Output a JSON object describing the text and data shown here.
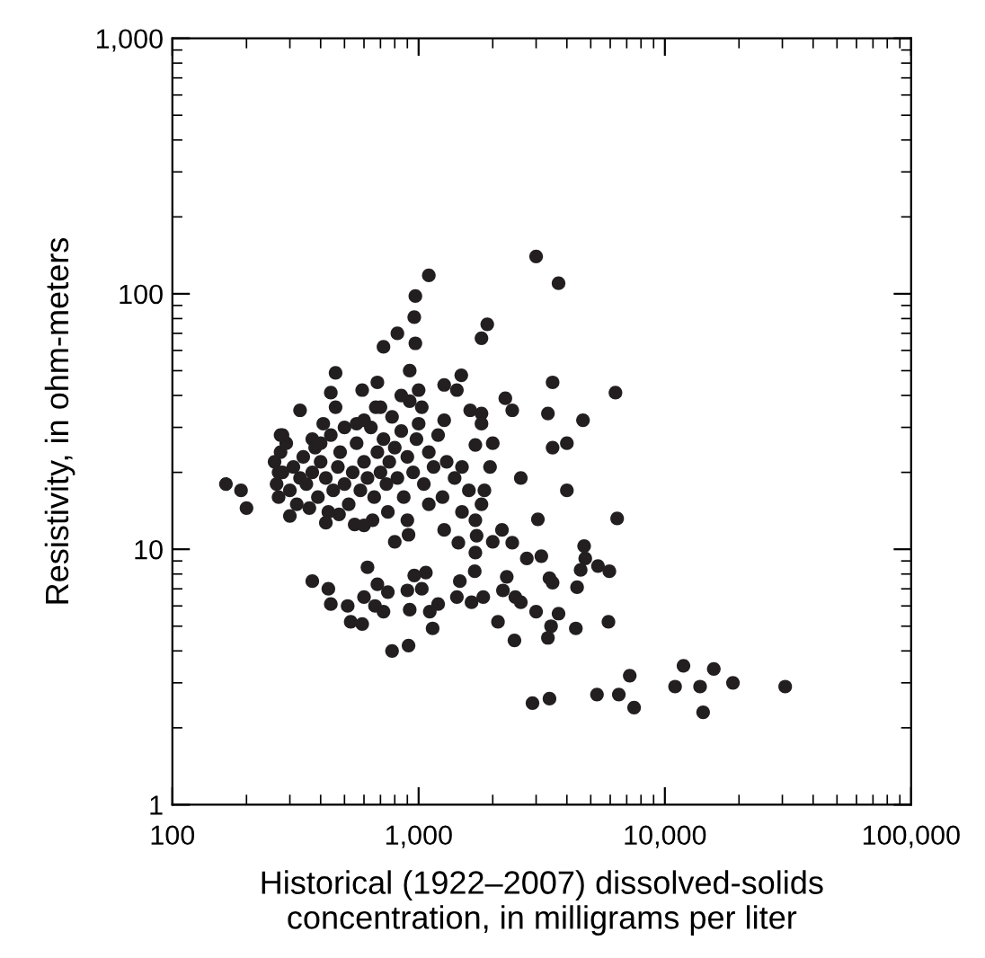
{
  "chart_data": {
    "type": "scatter",
    "xlabel": "Historical (1922–2007) dissolved-solids\nconcentration, in milligrams per liter",
    "ylabel": "Resistivity, in ohm-meters",
    "log": "xy",
    "grid": false,
    "marker": "circle",
    "xlim": [
      100,
      100000
    ],
    "ylim": [
      1,
      1000
    ],
    "xticks": [
      {
        "value": 100,
        "label": "100"
      },
      {
        "value": 1000,
        "label": "1,000"
      },
      {
        "value": 10000,
        "label": "10,000"
      },
      {
        "value": 100000,
        "label": "100,000"
      }
    ],
    "yticks": [
      {
        "value": 1,
        "label": "1"
      },
      {
        "value": 10,
        "label": "10"
      },
      {
        "value": 100,
        "label": "100"
      },
      {
        "value": 1000,
        "label": "1,000"
      }
    ],
    "series": [
      {
        "color": "#231f20",
        "x": [
          3000,
          3700,
          1100,
          970,
          960,
          820,
          720,
          970,
          1900,
          1800,
          3500,
          6300,
          3350,
          4650,
          4000,
          3500,
          4000,
          2600,
          2250,
          2400,
          460,
          440,
          330,
          275,
          590,
          680,
          920,
          1270,
          1490,
          1430,
          1620,
          1800,
          1800,
          2000,
          1700,
          370,
          410,
          560,
          460,
          670,
          1030,
          1270,
          1950,
          1500,
          1850,
          270,
          420,
          475,
          600,
          800,
          910,
          1270,
          1450,
          1720,
          2000,
          2180,
          2400,
          3050,
          6400,
          1700,
          2750,
          3150,
          4700,
          4750,
          5350,
          5950,
          620,
          370,
          430,
          440,
          515,
          600,
          680,
          665,
          750,
          720,
          530,
          590,
          960,
          1070,
          900,
          1030,
          920,
          1110,
          1200,
          1140,
          780,
          910,
          1430,
          1640,
          1470,
          1690,
          1830,
          2280,
          2200,
          2470,
          2600,
          2100,
          3000,
          3700,
          3450,
          3350,
          2450,
          4350,
          5900,
          4400,
          4550,
          3400,
          3500,
          7200,
          5300,
          6500,
          7500,
          2900,
          3400,
          11900,
          15800,
          18900,
          11000,
          13900,
          14300,
          30800,
          165,
          190,
          200,
          260,
          265,
          270,
          275,
          280,
          290,
          300,
          310,
          320,
          330,
          340,
          350,
          360,
          370,
          380,
          390,
          400,
          420,
          430,
          440,
          450,
          470,
          480,
          500,
          520,
          540,
          560,
          580,
          600,
          620,
          640,
          660,
          680,
          700,
          720,
          740,
          760,
          780,
          800,
          820,
          850,
          870,
          900,
          920,
          950,
          980,
          1000,
          1050,
          1100,
          1150,
          1200,
          1250,
          1300,
          1400,
          1500,
          1600,
          1700,
          1800,
          650,
          750,
          900,
          1100,
          550,
          300,
          700,
          850,
          1000,
          600,
          500,
          400,
          280
        ],
        "values": [
          140,
          110,
          118,
          98,
          81,
          70,
          62,
          64,
          76,
          67,
          45,
          41,
          34,
          32,
          26,
          25,
          17,
          19,
          39,
          35,
          49,
          41,
          35,
          28,
          42,
          45,
          50,
          44,
          48,
          42,
          35,
          34,
          31,
          26,
          25.6,
          27,
          31,
          31,
          36,
          36,
          36,
          32,
          21,
          21,
          17,
          20,
          12.7,
          13.7,
          12.4,
          10.7,
          11.4,
          11.9,
          10.6,
          11.3,
          10.7,
          11.9,
          10.6,
          13.1,
          13.2,
          9.7,
          9.2,
          9.4,
          10.3,
          9.2,
          8.6,
          8.2,
          8.5,
          7.5,
          7.0,
          6.1,
          6.0,
          6.5,
          7.3,
          6.0,
          6.8,
          5.7,
          5.2,
          5.1,
          7.9,
          8.1,
          6.9,
          7.0,
          5.8,
          5.7,
          6.1,
          4.9,
          4.0,
          4.2,
          6.5,
          6.2,
          7.5,
          8.2,
          6.5,
          7.8,
          6.9,
          6.5,
          6.2,
          5.2,
          5.7,
          5.6,
          5.0,
          4.5,
          4.4,
          4.9,
          5.2,
          7.1,
          8.3,
          7.7,
          7.4,
          3.2,
          2.7,
          2.7,
          2.4,
          2.5,
          2.6,
          3.5,
          3.4,
          3.0,
          2.9,
          2.9,
          2.3,
          2.9,
          18,
          17,
          14.5,
          22,
          18,
          16,
          24,
          20,
          26,
          17,
          21,
          15,
          19,
          23,
          18,
          14.5,
          20,
          25,
          16,
          22,
          19,
          14,
          28,
          17,
          21,
          24,
          18,
          15,
          20,
          26,
          17,
          22,
          19,
          30,
          16,
          24,
          20,
          27,
          18,
          22,
          33,
          25,
          19,
          29,
          16,
          23,
          38,
          20,
          27,
          31,
          18,
          24,
          21,
          28,
          16,
          22,
          19,
          14,
          17,
          13,
          15,
          13,
          14,
          13,
          15,
          12.5,
          13.5,
          36,
          40,
          42,
          32,
          30,
          26,
          28
        ]
      }
    ]
  }
}
